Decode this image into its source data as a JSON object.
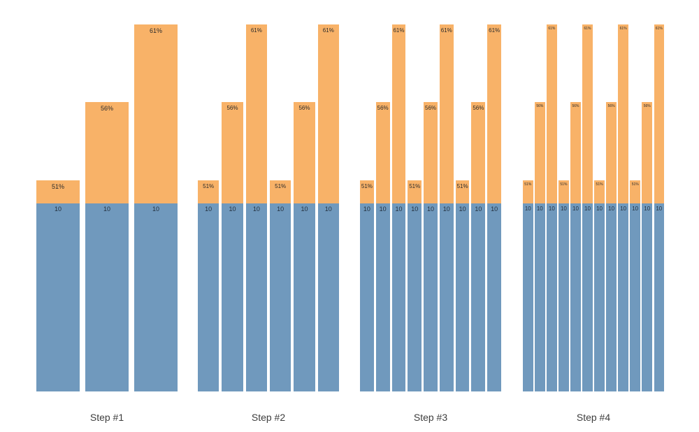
{
  "chart_data": {
    "type": "bar",
    "subtype": "stacked-grouped",
    "title": "",
    "xlabel": "",
    "ylabel": "",
    "grid": false,
    "legend": [],
    "colors": {
      "base_segment": "#7099BD",
      "top_segment": "#F8B268",
      "bar_label_text": "#2b2b2b",
      "step_label_text": "#3d3d3d",
      "background": "#ffffff"
    },
    "base_value": 10,
    "percent_levels": [
      "51%",
      "56%",
      "61%"
    ],
    "groups": [
      {
        "label": "Step #1",
        "bars": [
          {
            "base": "10",
            "percent": "51%"
          },
          {
            "base": "10",
            "percent": "56%"
          },
          {
            "base": "10",
            "percent": "61%"
          }
        ]
      },
      {
        "label": "Step #2",
        "bars": [
          {
            "base": "10",
            "percent": "51%"
          },
          {
            "base": "10",
            "percent": "56%"
          },
          {
            "base": "10",
            "percent": "61%"
          },
          {
            "base": "10",
            "percent": "51%"
          },
          {
            "base": "10",
            "percent": "56%"
          },
          {
            "base": "10",
            "percent": "61%"
          }
        ]
      },
      {
        "label": "Step #3",
        "bars": [
          {
            "base": "10",
            "percent": "51%"
          },
          {
            "base": "10",
            "percent": "56%"
          },
          {
            "base": "10",
            "percent": "61%"
          },
          {
            "base": "10",
            "percent": "51%"
          },
          {
            "base": "10",
            "percent": "56%"
          },
          {
            "base": "10",
            "percent": "61%"
          },
          {
            "base": "10",
            "percent": "51%"
          },
          {
            "base": "10",
            "percent": "56%"
          },
          {
            "base": "10",
            "percent": "61%"
          }
        ]
      },
      {
        "label": "Step #4",
        "bars": [
          {
            "base": "10",
            "percent": "51%"
          },
          {
            "base": "10",
            "percent": "56%"
          },
          {
            "base": "10",
            "percent": "61%"
          },
          {
            "base": "10",
            "percent": "51%"
          },
          {
            "base": "10",
            "percent": "56%"
          },
          {
            "base": "10",
            "percent": "61%"
          },
          {
            "base": "10",
            "percent": "51%"
          },
          {
            "base": "10",
            "percent": "56%"
          },
          {
            "base": "10",
            "percent": "61%"
          },
          {
            "base": "10",
            "percent": "51%"
          },
          {
            "base": "10",
            "percent": "56%"
          },
          {
            "base": "10",
            "percent": "61%"
          }
        ]
      }
    ]
  }
}
